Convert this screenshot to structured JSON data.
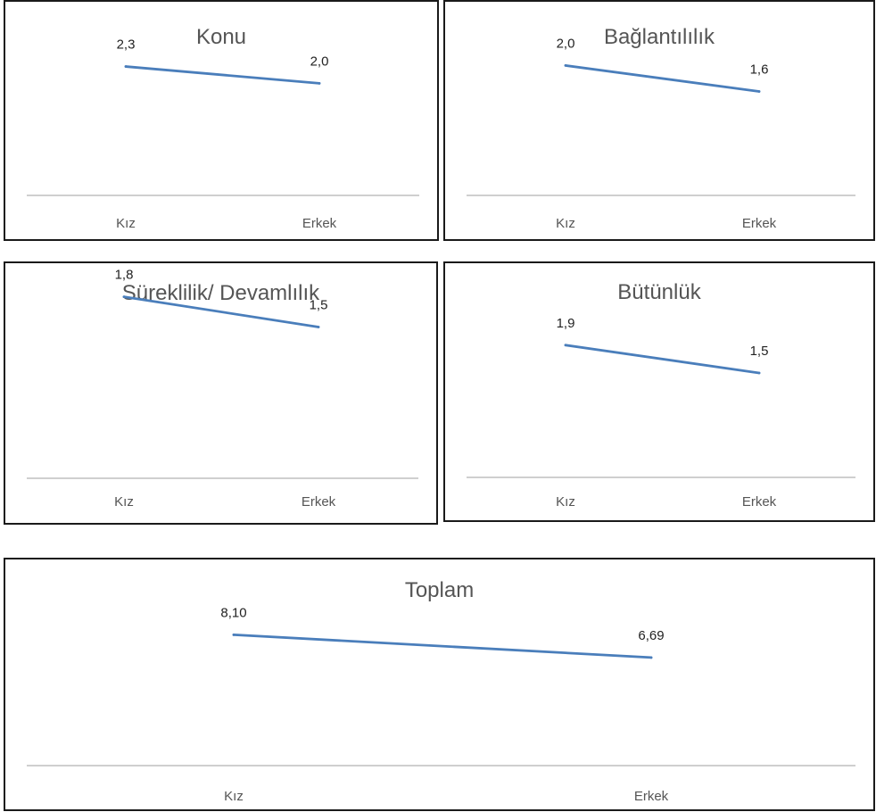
{
  "colors": {
    "series": "#4a7ebb",
    "axis": "#bfbfbf"
  },
  "chart_data": [
    {
      "type": "line",
      "title": "Konu",
      "categories": [
        "Kız",
        "Erkek"
      ],
      "values": [
        2.3,
        2.0
      ],
      "value_labels": [
        "2,3",
        "2,0"
      ],
      "ylim": [
        0,
        2.5
      ],
      "grid": false
    },
    {
      "type": "line",
      "title": "Bağlantılılık",
      "categories": [
        "Kız",
        "Erkek"
      ],
      "values": [
        2.0,
        1.6
      ],
      "value_labels": [
        "2,0",
        "1,6"
      ],
      "ylim": [
        0,
        2.5
      ],
      "grid": false
    },
    {
      "type": "line",
      "title": "Süreklilik/ Devamlılık",
      "categories": [
        "Kız",
        "Erkek"
      ],
      "values": [
        1.8,
        1.5
      ],
      "value_labels": [
        "1,8",
        "1,5"
      ],
      "ylim": [
        0,
        2.0
      ],
      "grid": false
    },
    {
      "type": "line",
      "title": "Bütünlük",
      "categories": [
        "Kız",
        "Erkek"
      ],
      "values": [
        1.9,
        1.5
      ],
      "value_labels": [
        "1,9",
        "1,5"
      ],
      "ylim": [
        0,
        2.5
      ],
      "grid": false
    },
    {
      "type": "line",
      "title": "Toplam",
      "categories": [
        "Kız",
        "Erkek"
      ],
      "values": [
        8.1,
        6.69
      ],
      "value_labels": [
        "8,10",
        "6,69"
      ],
      "ylim": [
        0,
        10
      ],
      "grid": false
    }
  ]
}
